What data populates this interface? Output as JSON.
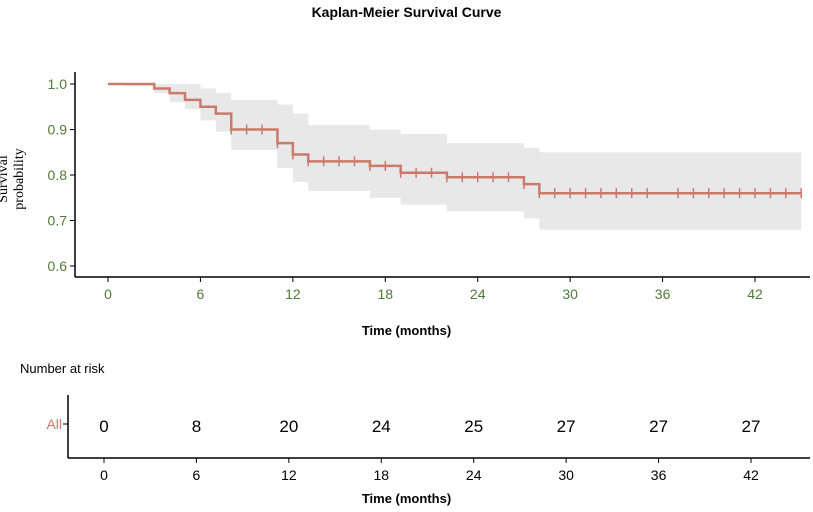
{
  "chart_data": {
    "type": "line",
    "title": "Kaplan-Meier Survival Curve",
    "xlabel": "Time (months)",
    "ylabel": "Survival probability",
    "xlim": [
      0,
      45
    ],
    "ylim": [
      0.59,
      1.02
    ],
    "x_ticks": [
      0,
      6,
      12,
      18,
      24,
      30,
      36,
      42
    ],
    "y_ticks": [
      0.6,
      0.7,
      0.8,
      0.9,
      1.0
    ],
    "y_tick_labels": [
      "0.6",
      "0.7",
      "0.8",
      "0.9",
      "1.0"
    ],
    "colors": {
      "curve": "#c97a6c",
      "ci_band": "#e8e8e8",
      "tick_label": "#4f7a3a",
      "strata_label": "#c97a6c"
    },
    "series": [
      {
        "name": "All",
        "steps": [
          {
            "t": 0,
            "s": 1.0
          },
          {
            "t": 1,
            "s": 1.0
          },
          {
            "t": 3,
            "s": 0.99
          },
          {
            "t": 4,
            "s": 0.98
          },
          {
            "t": 5,
            "s": 0.965
          },
          {
            "t": 6,
            "s": 0.95
          },
          {
            "t": 7,
            "s": 0.935
          },
          {
            "t": 8,
            "s": 0.9
          },
          {
            "t": 11,
            "s": 0.87
          },
          {
            "t": 12,
            "s": 0.845
          },
          {
            "t": 13,
            "s": 0.83
          },
          {
            "t": 17,
            "s": 0.82
          },
          {
            "t": 19,
            "s": 0.805
          },
          {
            "t": 22,
            "s": 0.795
          },
          {
            "t": 27,
            "s": 0.78
          },
          {
            "t": 28,
            "s": 0.76
          },
          {
            "t": 45,
            "s": 0.76
          }
        ],
        "ci_band": [
          {
            "t": 0,
            "lo": 1.0,
            "hi": 1.0
          },
          {
            "t": 1,
            "lo": 0.995,
            "hi": 1.0
          },
          {
            "t": 3,
            "lo": 0.98,
            "hi": 1.0
          },
          {
            "t": 4,
            "lo": 0.96,
            "hi": 1.0
          },
          {
            "t": 5,
            "lo": 0.945,
            "hi": 1.0
          },
          {
            "t": 6,
            "lo": 0.92,
            "hi": 0.99
          },
          {
            "t": 7,
            "lo": 0.895,
            "hi": 0.98
          },
          {
            "t": 8,
            "lo": 0.855,
            "hi": 0.965
          },
          {
            "t": 11,
            "lo": 0.815,
            "hi": 0.955
          },
          {
            "t": 12,
            "lo": 0.785,
            "hi": 0.935
          },
          {
            "t": 13,
            "lo": 0.765,
            "hi": 0.91
          },
          {
            "t": 17,
            "lo": 0.75,
            "hi": 0.9
          },
          {
            "t": 19,
            "lo": 0.735,
            "hi": 0.89
          },
          {
            "t": 22,
            "lo": 0.72,
            "hi": 0.87
          },
          {
            "t": 27,
            "lo": 0.705,
            "hi": 0.86
          },
          {
            "t": 28,
            "lo": 0.68,
            "hi": 0.85
          },
          {
            "t": 45,
            "lo": 0.68,
            "hi": 0.85
          }
        ],
        "censored": [
          {
            "t": 8,
            "s": 0.9
          },
          {
            "t": 9,
            "s": 0.9
          },
          {
            "t": 10,
            "s": 0.9
          },
          {
            "t": 11,
            "s": 0.87
          },
          {
            "t": 12,
            "s": 0.845
          },
          {
            "t": 13,
            "s": 0.83
          },
          {
            "t": 14,
            "s": 0.83
          },
          {
            "t": 15,
            "s": 0.83
          },
          {
            "t": 16,
            "s": 0.83
          },
          {
            "t": 17,
            "s": 0.82
          },
          {
            "t": 18,
            "s": 0.82
          },
          {
            "t": 19,
            "s": 0.805
          },
          {
            "t": 20,
            "s": 0.805
          },
          {
            "t": 21,
            "s": 0.805
          },
          {
            "t": 22,
            "s": 0.795
          },
          {
            "t": 23,
            "s": 0.795
          },
          {
            "t": 24,
            "s": 0.795
          },
          {
            "t": 25,
            "s": 0.795
          },
          {
            "t": 26,
            "s": 0.795
          },
          {
            "t": 27,
            "s": 0.78
          },
          {
            "t": 28,
            "s": 0.76
          },
          {
            "t": 29,
            "s": 0.76
          },
          {
            "t": 30,
            "s": 0.76
          },
          {
            "t": 31,
            "s": 0.76
          },
          {
            "t": 32,
            "s": 0.76
          },
          {
            "t": 33,
            "s": 0.76
          },
          {
            "t": 34,
            "s": 0.76
          },
          {
            "t": 35,
            "s": 0.76
          },
          {
            "t": 37,
            "s": 0.76
          },
          {
            "t": 38,
            "s": 0.76
          },
          {
            "t": 39,
            "s": 0.76
          },
          {
            "t": 40,
            "s": 0.76
          },
          {
            "t": 41,
            "s": 0.76
          },
          {
            "t": 42,
            "s": 0.76
          },
          {
            "t": 43,
            "s": 0.76
          },
          {
            "t": 44,
            "s": 0.76
          },
          {
            "t": 45,
            "s": 0.76
          }
        ]
      }
    ],
    "risk_table": {
      "title": "Number at risk",
      "strata_label": "All",
      "times": [
        0,
        6,
        12,
        18,
        24,
        30,
        36,
        42
      ],
      "values": [
        "0",
        "8",
        "20",
        "24",
        "25",
        "27",
        "27",
        "27"
      ],
      "xlabel": "Time (months)"
    }
  }
}
